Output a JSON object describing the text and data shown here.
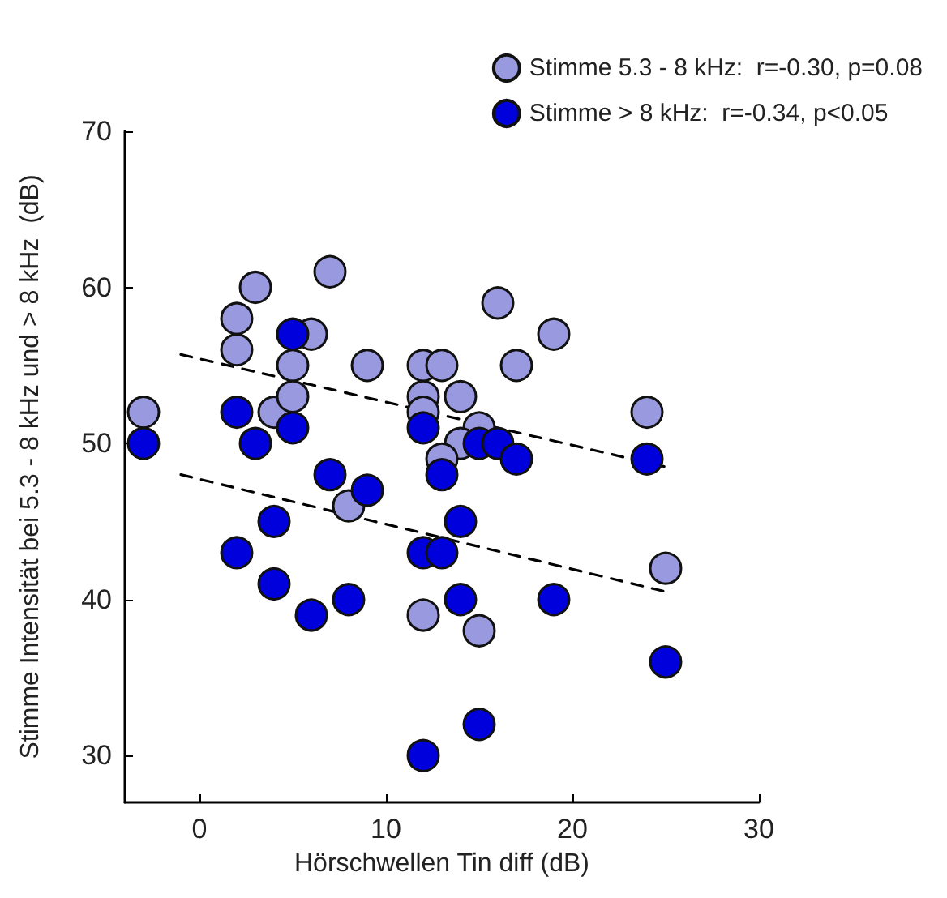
{
  "chart_data": {
    "type": "scatter",
    "xlabel": "Hörschwellen Tin diff (dB)",
    "ylabel": "Stimme Intensität bei 5.3 - 8 kHz und > 8 kHz  (dB)",
    "xlim": [
      -4,
      30
    ],
    "xticks": [
      0,
      10,
      20,
      30
    ],
    "ylim": [
      27,
      70
    ],
    "yticks": [
      30,
      40,
      50,
      60,
      70
    ],
    "grid": false,
    "legend": "top right",
    "marker": "circle",
    "series": [
      {
        "name": "Stimme 5.3 - 8 kHz:  r=-0.30, p=0.08",
        "color": "#9999e0",
        "x": [
          -3,
          2,
          2,
          3,
          4,
          5,
          5,
          6,
          7,
          9,
          12,
          13,
          12,
          12,
          14,
          16,
          19,
          17,
          15,
          14,
          13,
          24,
          25,
          8,
          12,
          15
        ],
        "values": [
          52,
          58,
          56,
          60,
          52,
          55,
          53,
          57,
          61,
          55,
          55,
          55,
          53,
          52,
          53,
          59,
          57,
          55,
          51,
          50,
          49,
          52,
          42,
          46,
          39,
          38
        ]
      },
      {
        "name": "Stimme > 8 kHz:  r=-0.34, p<0.05",
        "color": "#0000dd",
        "x": [
          -3,
          2,
          3,
          5,
          5,
          7,
          9,
          4,
          2,
          4,
          6,
          8,
          12,
          12,
          12,
          13,
          15,
          16,
          17,
          24,
          14,
          13,
          14,
          19,
          25,
          15
        ],
        "values": [
          50,
          52,
          50,
          57,
          51,
          48,
          47,
          45,
          43,
          41,
          39,
          40,
          30,
          43,
          51,
          48,
          50,
          50,
          49,
          49,
          45,
          43,
          40,
          40,
          36,
          32
        ]
      },
      {
        "type": "line",
        "color": "#000000",
        "line_style": "dashed",
        "marker": "none",
        "x": [
          -1,
          25
        ],
        "values": [
          55.7,
          48.5
        ]
      },
      {
        "type": "line",
        "color": "#000000",
        "line_style": "dashed",
        "marker": "none",
        "x": [
          -1,
          25
        ],
        "values": [
          48,
          40.5
        ]
      }
    ]
  }
}
